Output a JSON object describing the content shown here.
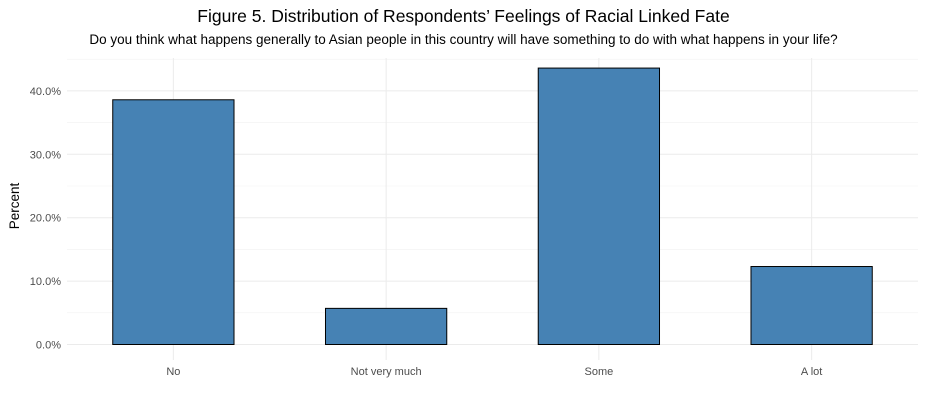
{
  "chart_data": {
    "type": "bar",
    "title": "Figure 5. Distribution of Respondents’ Feelings of Racial Linked Fate",
    "subtitle": "Do you think what happens generally to Asian people in this country will have something to do with what happens in your life?",
    "xlabel": "",
    "ylabel": "Percent",
    "categories": [
      "No",
      "Not very much",
      "Some",
      "A lot"
    ],
    "values": [
      38.6,
      5.7,
      43.6,
      12.3
    ],
    "ylim": [
      0,
      46
    ],
    "yticks": [
      0,
      10,
      20,
      30,
      40
    ],
    "ytick_labels": [
      "0.0%",
      "10.0%",
      "20.0%",
      "30.0%",
      "40.0%"
    ],
    "grid": true,
    "bar_color": "#4682b4",
    "bar_edge_color": "#000000"
  }
}
